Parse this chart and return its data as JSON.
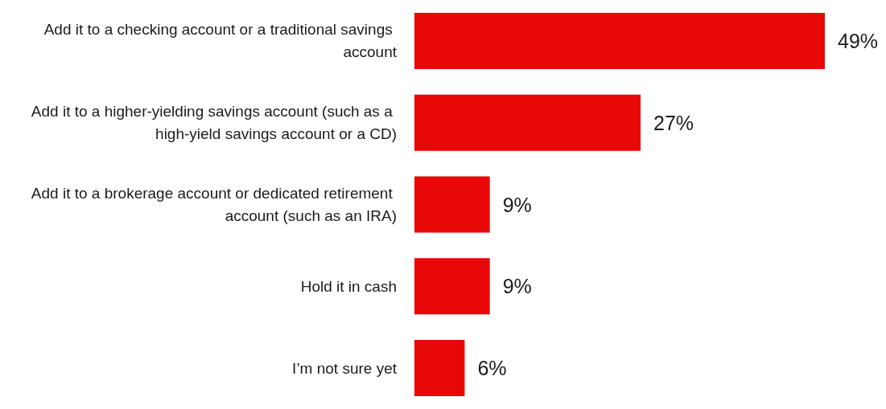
{
  "chart_data": {
    "type": "bar",
    "orientation": "horizontal",
    "categories": [
      "Add it to a checking account or a traditional savings account",
      "Add it to a higher-yielding savings account (such as a high-yield savings account or a CD)",
      "Add it to a brokerage account or dedicated retirement account (such as an IRA)",
      "Hold it in cash",
      "I’m not sure yet"
    ],
    "values": [
      49,
      27,
      9,
      9,
      6
    ],
    "value_labels": [
      "49%",
      "27%",
      "9%",
      "9%",
      "6%"
    ],
    "color": "#e90808"
  }
}
